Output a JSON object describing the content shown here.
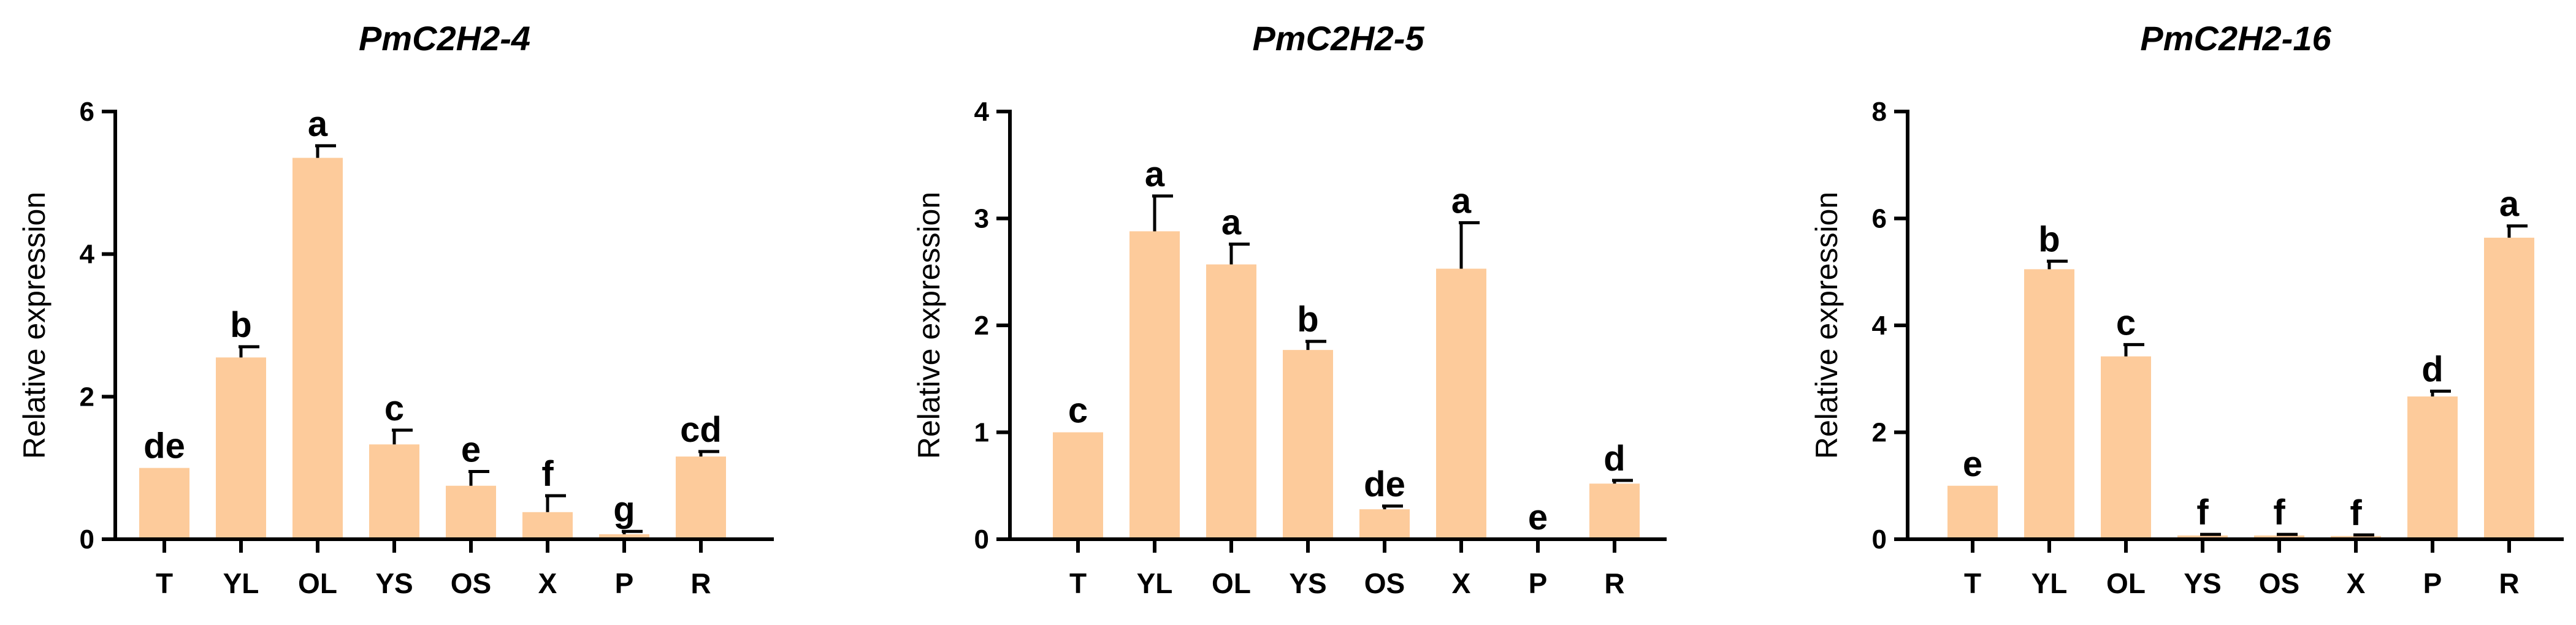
{
  "bar_color": "#fdcb9b",
  "chart_data": [
    {
      "type": "bar",
      "title": "PmC2H2-4",
      "ylabel": "Relative expression",
      "xlabel": "",
      "ylim": [
        0,
        6
      ],
      "yticks": [
        0,
        2,
        4,
        6
      ],
      "categories": [
        "T",
        "YL",
        "OL",
        "YS",
        "OS",
        "X",
        "P",
        "R"
      ],
      "values": [
        1.0,
        2.55,
        5.35,
        1.33,
        0.75,
        0.38,
        0.07,
        1.16
      ],
      "errors": [
        0.0,
        0.15,
        0.17,
        0.2,
        0.2,
        0.23,
        0.04,
        0.07
      ],
      "letters": [
        "de",
        "b",
        "a",
        "c",
        "e",
        "f",
        "g",
        "cd"
      ]
    },
    {
      "type": "bar",
      "title": "PmC2H2-5",
      "ylabel": "Relative expression",
      "xlabel": "",
      "ylim": [
        0,
        4
      ],
      "yticks": [
        0,
        1,
        2,
        3,
        4
      ],
      "categories": [
        "T",
        "YL",
        "OL",
        "YS",
        "OS",
        "X",
        "P",
        "R"
      ],
      "values": [
        1.0,
        2.88,
        2.57,
        1.77,
        0.28,
        2.53,
        0.0,
        0.52
      ],
      "errors": [
        0.0,
        0.33,
        0.19,
        0.08,
        0.03,
        0.43,
        0.0,
        0.03
      ],
      "letters": [
        "c",
        "a",
        "a",
        "b",
        "de",
        "a",
        "e",
        "d"
      ]
    },
    {
      "type": "bar",
      "title": "PmC2H2-16",
      "ylabel": "Relative expression",
      "xlabel": "",
      "ylim": [
        0,
        8
      ],
      "yticks": [
        0,
        2,
        4,
        6,
        8
      ],
      "categories": [
        "T",
        "YL",
        "OL",
        "YS",
        "OS",
        "X",
        "P",
        "R"
      ],
      "values": [
        1.0,
        5.05,
        3.42,
        0.07,
        0.07,
        0.06,
        2.67,
        5.64
      ],
      "errors": [
        0.0,
        0.15,
        0.22,
        0.02,
        0.02,
        0.02,
        0.1,
        0.22
      ],
      "letters": [
        "e",
        "b",
        "c",
        "f",
        "f",
        "f",
        "d",
        "a"
      ]
    }
  ]
}
